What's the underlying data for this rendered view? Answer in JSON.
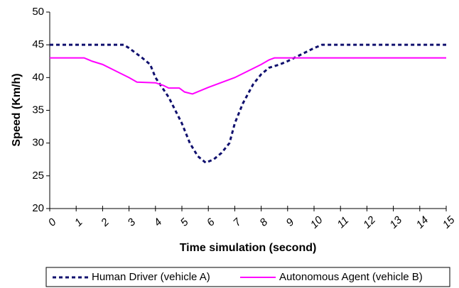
{
  "chart_data": {
    "type": "line",
    "xlabel": "Time simulation (second)",
    "ylabel": "Speed (Km/h)",
    "xlim": [
      0,
      15
    ],
    "xticks": [
      0,
      1,
      2,
      3,
      4,
      5,
      6,
      7,
      8,
      9,
      10,
      11,
      12,
      13,
      14,
      15
    ],
    "ylim": [
      20,
      50
    ],
    "yticks": [
      20,
      25,
      30,
      35,
      40,
      45,
      50
    ],
    "grid": false,
    "legend": "bottom",
    "series": [
      {
        "name": "Human Driver (vehicle A)",
        "color": "#10106e",
        "dash": true,
        "x": [
          0,
          1,
          2,
          2.8,
          3,
          3.5,
          3.8,
          4,
          4.5,
          5,
          5.3,
          5.6,
          5.9,
          6.2,
          6.5,
          6.8,
          7,
          7.3,
          7.7,
          8,
          8.3,
          8.7,
          9,
          9.5,
          10,
          10.3,
          11,
          15
        ],
        "values": [
          45,
          45,
          45,
          45,
          44.5,
          43,
          42,
          40,
          37,
          33,
          30,
          28,
          27,
          27.5,
          28.5,
          30,
          33,
          36,
          39,
          40.5,
          41.5,
          42,
          42.5,
          43.5,
          44.5,
          45,
          45,
          45
        ]
      },
      {
        "name": "Autonomous Agent (vehicle B)",
        "color": "#ff00ff",
        "dash": false,
        "x": [
          0,
          1.3,
          1.6,
          2,
          2.5,
          3,
          3.3,
          4,
          4.3,
          4.5,
          4.9,
          5.1,
          5.4,
          5.7,
          6,
          7,
          7.5,
          8,
          8.3,
          8.5,
          15
        ],
        "values": [
          43,
          43,
          42.5,
          42,
          41,
          40,
          39.3,
          39.2,
          38.8,
          38.4,
          38.4,
          37.8,
          37.5,
          38,
          38.5,
          40,
          41,
          42,
          42.7,
          43,
          43
        ]
      }
    ]
  }
}
